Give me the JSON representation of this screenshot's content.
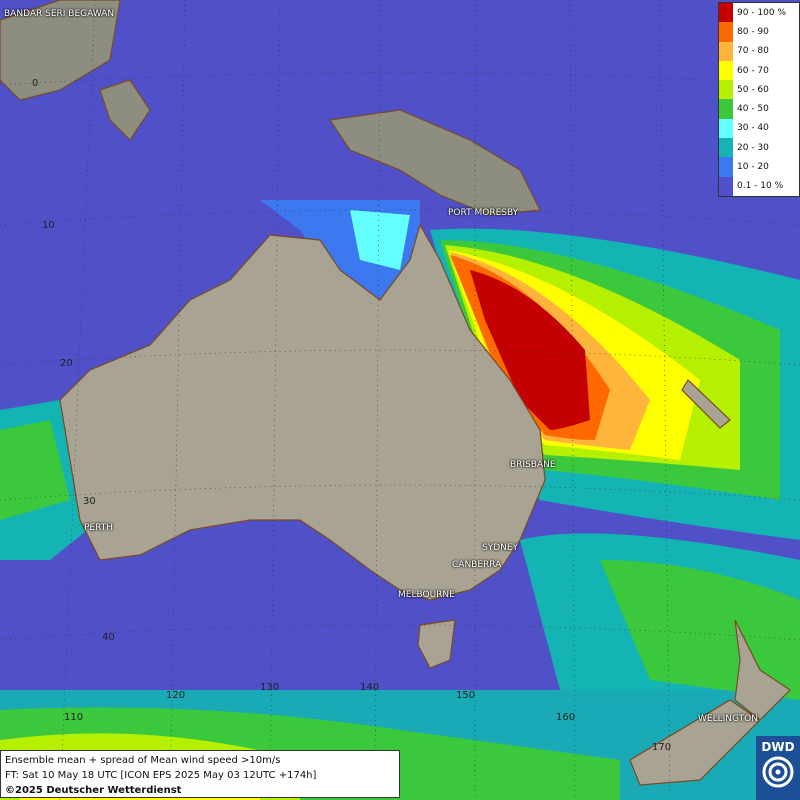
{
  "legend": {
    "items": [
      {
        "label": "90 - 100 %",
        "color": "#c40000"
      },
      {
        "label": "80 - 90",
        "color": "#ff6a00"
      },
      {
        "label": "70 - 80",
        "color": "#ffb43c"
      },
      {
        "label": "60 - 70",
        "color": "#ffff00"
      },
      {
        "label": "50 - 60",
        "color": "#b4f000"
      },
      {
        "label": "40 - 50",
        "color": "#3cc83c"
      },
      {
        "label": "30 - 40",
        "color": "#64ffff"
      },
      {
        "label": "20 - 30",
        "color": "#14b4b4"
      },
      {
        "label": "10 - 20",
        "color": "#3c78f0"
      },
      {
        "label": "0.1 - 10 %",
        "color": "#5050c8"
      }
    ]
  },
  "cities": {
    "bandar": "BANDAR SERI BEGAWAN",
    "port_moresby": "PORT MORESBY",
    "brisbane": "BRISBANE",
    "perth": "PERTH",
    "sydney": "SYDNEY",
    "canberra": "CANBERRA",
    "melbourne": "MELBOURNE",
    "wellington": "WELLINGTON"
  },
  "grid_labels": {
    "lat_0": "0",
    "lat_10": "10",
    "lat_20": "20",
    "lat_30": "30",
    "lat_40": "40",
    "lon_110": "110",
    "lon_120": "120",
    "lon_130": "130",
    "lon_140": "140",
    "lon_150": "150",
    "lon_160": "160",
    "lon_170": "170"
  },
  "info": {
    "line1": "Ensemble mean + spread of Mean wind speed >10m/s",
    "line2": "FT: Sat 10 May 18 UTC [ICON EPS 2025 May 03 12UTC +174h]",
    "line3": "©2025 Deutscher Wetterdienst"
  },
  "logo": {
    "text": "DWD"
  }
}
